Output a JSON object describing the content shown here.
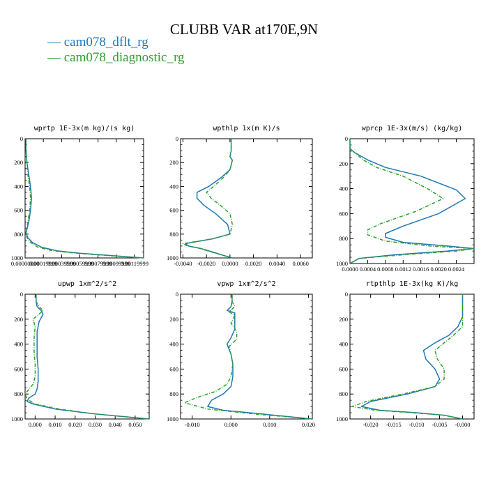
{
  "title": "CLUBB VAR at170E,9N",
  "legend": [
    {
      "label": "cam078_dflt_rg",
      "color": "#1f77b4"
    },
    {
      "label": "cam078_diagnostic_rg",
      "color": "#2ca02c"
    }
  ],
  "chart_data": [
    {
      "type": "line",
      "title": "wprtp  1E-3x(m kg)/(s kg)",
      "xlim": [
        0,
        0.0013
      ],
      "x_ticks": [
        "0.00000000",
        "0.00019999",
        "0.00039999",
        "0.00059999",
        "0.00079999",
        "0.00099999",
        "0.00119999"
      ],
      "x_tick_values": [
        0,
        0.0002,
        0.0004,
        0.0006,
        0.0008,
        0.001,
        0.0012
      ],
      "ylim": [
        0,
        1000
      ],
      "y_ticks": [
        0,
        200,
        400,
        600,
        800,
        1000
      ],
      "series": [
        {
          "name": "cam078_dflt_rg",
          "x": [
            1e-05,
            1e-05,
            2e-05,
            4e-05,
            6e-05,
            7e-05,
            6e-05,
            4e-05,
            1e-05,
            3e-05,
            8e-05,
            0.00018,
            0.00035,
            0.0006,
            0.00095,
            0.0013
          ],
          "y": [
            0,
            100,
            200,
            300,
            400,
            500,
            600,
            700,
            790,
            830,
            870,
            910,
            940,
            960,
            980,
            1000
          ]
        },
        {
          "name": "cam078_diagnostic_rg",
          "x": [
            1e-05,
            1e-05,
            2e-05,
            3e-05,
            5e-05,
            6e-05,
            5e-05,
            3e-05,
            1e-05,
            2e-05,
            6e-05,
            0.00014,
            0.0003,
            0.00056,
            0.0009,
            0.0013
          ],
          "y": [
            0,
            100,
            200,
            300,
            400,
            500,
            600,
            700,
            790,
            830,
            870,
            910,
            940,
            960,
            980,
            1000
          ]
        }
      ]
    },
    {
      "type": "line",
      "title": "wpthlp  1x(m K)/s",
      "xlim": [
        -0.0042,
        0.007
      ],
      "x_ticks": [
        "-0.0040",
        "-0.0020",
        "0.0000",
        "0.0020",
        "0.0040",
        "0.0060"
      ],
      "x_tick_values": [
        -0.004,
        -0.002,
        0,
        0.002,
        0.004,
        0.006
      ],
      "ylim": [
        0,
        1000
      ],
      "y_ticks": [
        0,
        200,
        400,
        600,
        800,
        1000
      ],
      "series": [
        {
          "name": "cam078_dflt_rg",
          "x": [
            0.0001,
            0.0001,
            0.0,
            0.0002,
            0.0,
            -0.0008,
            -0.0018,
            -0.0028,
            -0.0028,
            -0.0022,
            -0.0012,
            -0.0002,
            0.0,
            -0.0015,
            -0.0038,
            -0.0035,
            -0.0025,
            -0.0015,
            -0.0005,
            0.0002
          ],
          "y": [
            0,
            100,
            150,
            180,
            260,
            330,
            400,
            450,
            500,
            560,
            630,
            720,
            800,
            840,
            880,
            900,
            920,
            950,
            980,
            1000
          ]
        },
        {
          "name": "cam078_diagnostic_rg",
          "x": [
            0.0001,
            0.0001,
            0.0,
            0.0002,
            0.0,
            -0.0006,
            -0.0014,
            -0.002,
            -0.0016,
            -0.0008,
            0.0,
            0.0002,
            0.0,
            -0.0015,
            -0.004,
            -0.0036,
            -0.0026,
            -0.0016,
            -0.0005,
            0.0002
          ],
          "y": [
            0,
            100,
            150,
            180,
            260,
            330,
            400,
            450,
            500,
            560,
            630,
            720,
            800,
            840,
            880,
            900,
            920,
            950,
            980,
            1000
          ]
        }
      ]
    },
    {
      "type": "line",
      "title": "wprcp  1E-3x(m/s) (kg/kg)",
      "xlim": [
        0,
        0.0028
      ],
      "x_ticks": [
        "0.0000",
        "0.0004",
        "0.0008",
        "0.0012",
        "0.0016",
        "0.0020",
        "0.0024"
      ],
      "x_tick_values": [
        0,
        0.0004,
        0.0008,
        0.0012,
        0.0016,
        0.002,
        0.0024
      ],
      "ylim": [
        0,
        1000
      ],
      "y_ticks": [
        0,
        200,
        400,
        600,
        800,
        1000
      ],
      "series": [
        {
          "name": "cam078_dflt_rg",
          "x": [
            0.0,
            0.0,
            0.0001,
            0.0004,
            0.0008,
            0.0016,
            0.0024,
            0.0026,
            0.002,
            0.0012,
            0.0008,
            0.0008,
            0.0012,
            0.0022,
            0.0028,
            0.0022,
            0.001,
            0.0002,
            0.0
          ],
          "y": [
            0,
            80,
            110,
            170,
            230,
            300,
            410,
            480,
            600,
            700,
            760,
            790,
            830,
            860,
            880,
            900,
            930,
            960,
            1000
          ]
        },
        {
          "name": "cam078_diagnostic_rg",
          "x": [
            0.0,
            0.0,
            0.0001,
            0.0003,
            0.0006,
            0.0012,
            0.0018,
            0.0021,
            0.0015,
            0.0007,
            0.0004,
            0.0004,
            0.0008,
            0.0018,
            0.0028,
            0.0024,
            0.0012,
            0.0002,
            0.0
          ],
          "y": [
            0,
            80,
            110,
            170,
            230,
            300,
            410,
            480,
            580,
            680,
            730,
            770,
            820,
            860,
            880,
            900,
            930,
            960,
            1000
          ]
        }
      ]
    },
    {
      "type": "line",
      "title": "upwp  1xm^2/s^2",
      "xlim": [
        -0.005,
        0.057
      ],
      "x_ticks": [
        "0.000",
        "0.010",
        "0.020",
        "0.030",
        "0.040",
        "0.050"
      ],
      "x_tick_values": [
        0,
        0.01,
        0.02,
        0.03,
        0.04,
        0.05
      ],
      "ylim": [
        0,
        1000
      ],
      "y_ticks": [
        0,
        200,
        400,
        600,
        800,
        1000
      ],
      "series": [
        {
          "name": "cam078_dflt_rg",
          "x": [
            0.0005,
            0.0005,
            0.001,
            0.003,
            0.004,
            0.002,
            0.001,
            0.001,
            0.001,
            0.0015,
            0.0015,
            0.001,
            0.0,
            -0.003,
            -0.004,
            -0.001,
            0.01,
            0.03,
            0.057
          ],
          "y": [
            0,
            60,
            100,
            130,
            160,
            220,
            300,
            400,
            500,
            600,
            700,
            760,
            800,
            830,
            860,
            880,
            920,
            960,
            1000
          ]
        },
        {
          "name": "cam078_diagnostic_rg",
          "x": [
            0.0005,
            0.0005,
            0.002,
            0.004,
            0.002,
            -0.001,
            0.0,
            -0.0005,
            -0.0005,
            0.0,
            0.0,
            -0.001,
            -0.003,
            -0.005,
            -0.004,
            0.0,
            0.012,
            0.03,
            0.057
          ],
          "y": [
            0,
            60,
            100,
            130,
            160,
            200,
            260,
            350,
            460,
            560,
            660,
            720,
            760,
            800,
            840,
            880,
            920,
            960,
            1000
          ]
        }
      ]
    },
    {
      "type": "line",
      "title": "vpwp  1xm^2/s^2",
      "xlim": [
        -0.013,
        0.021
      ],
      "x_ticks": [
        "-0.010",
        "0.000",
        "0.010",
        "0.020"
      ],
      "x_tick_values": [
        -0.01,
        0,
        0.01,
        0.02
      ],
      "ylim": [
        0,
        1000
      ],
      "y_ticks": [
        0,
        200,
        400,
        600,
        800,
        1000
      ],
      "series": [
        {
          "name": "cam078_dflt_rg",
          "x": [
            0.0003,
            0.0003,
            0.0,
            -0.001,
            0.001,
            0.001,
            0.001,
            0.0,
            -0.001,
            0.0,
            0.0005,
            0.0005,
            0.0,
            -0.002,
            -0.005,
            -0.006,
            -0.002,
            0.008,
            0.021
          ],
          "y": [
            0,
            60,
            100,
            130,
            150,
            200,
            280,
            350,
            400,
            480,
            560,
            660,
            740,
            800,
            850,
            900,
            930,
            960,
            1000
          ]
        },
        {
          "name": "cam078_diagnostic_rg",
          "x": [
            0.0003,
            0.0003,
            0.001,
            -0.0005,
            0.001,
            0.0,
            0.0015,
            0.0015,
            -0.0005,
            0.0,
            0.0005,
            0.0,
            -0.001,
            -0.004,
            -0.009,
            -0.012,
            -0.006,
            0.006,
            0.021
          ],
          "y": [
            0,
            60,
            100,
            140,
            170,
            230,
            300,
            360,
            420,
            480,
            560,
            660,
            720,
            780,
            830,
            870,
            920,
            960,
            1000
          ]
        }
      ]
    },
    {
      "type": "line",
      "title": "rtpthlp  1E-3x(kg K)/kg",
      "xlim": [
        -0.0245,
        0.0025
      ],
      "x_ticks": [
        "-0.020",
        "-0.015",
        "-0.010",
        "-0.005",
        "-0.000"
      ],
      "x_tick_values": [
        -0.02,
        -0.015,
        -0.01,
        -0.005,
        0
      ],
      "ylim": [
        0,
        1000
      ],
      "y_ticks": [
        0,
        200,
        400,
        600,
        800,
        1000
      ],
      "series": [
        {
          "name": "cam078_dflt_rg",
          "x": [
            0.0,
            0.0,
            0.0,
            -0.001,
            -0.003,
            -0.006,
            -0.0085,
            -0.008,
            -0.006,
            -0.005,
            -0.006,
            -0.012,
            -0.02,
            -0.022,
            -0.018,
            -0.01,
            -0.004,
            0.0
          ],
          "y": [
            0,
            100,
            180,
            260,
            330,
            390,
            450,
            520,
            600,
            680,
            740,
            800,
            860,
            900,
            930,
            950,
            970,
            1000
          ]
        },
        {
          "name": "cam078_diagnostic_rg",
          "x": [
            0.0,
            0.0,
            0.0,
            0.0,
            -0.002,
            -0.004,
            -0.006,
            -0.0055,
            -0.004,
            -0.004,
            -0.006,
            -0.013,
            -0.021,
            -0.024,
            -0.019,
            -0.011,
            -0.004,
            0.0
          ],
          "y": [
            0,
            100,
            180,
            260,
            330,
            390,
            450,
            520,
            600,
            680,
            740,
            800,
            860,
            900,
            930,
            950,
            970,
            1000
          ]
        }
      ]
    }
  ]
}
